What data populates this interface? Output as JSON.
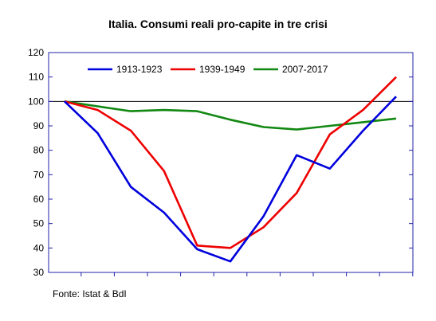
{
  "chart_data": {
    "type": "line",
    "title": "Italia. Consumi reali pro-capite in tre crisi",
    "xlabel": "",
    "ylabel": "",
    "ylim": [
      30,
      120
    ],
    "yticks": [
      30,
      40,
      50,
      60,
      70,
      80,
      90,
      100,
      110,
      120
    ],
    "x": [
      0,
      1,
      2,
      3,
      4,
      5,
      6,
      7,
      8,
      9,
      10
    ],
    "reference_line": 100,
    "legend_position": "top",
    "grid": false,
    "series": [
      {
        "name": "1913-1923",
        "color": "#0000dd",
        "values": [
          100,
          87,
          65,
          54.5,
          39.5,
          34.5,
          53,
          78,
          72.5,
          88,
          102
        ]
      },
      {
        "name": "1939-1949",
        "color": "#ee0000",
        "values": [
          100,
          96.5,
          88,
          71.5,
          41,
          40,
          48.5,
          62.5,
          86.5,
          96.5,
          110
        ]
      },
      {
        "name": "2007-2017",
        "color": "#118811",
        "values": [
          100,
          98,
          96,
          96.5,
          96,
          92.5,
          89.5,
          88.5,
          90,
          91.5,
          93
        ]
      }
    ]
  },
  "source_note": "Fonte: Istat & BdI"
}
